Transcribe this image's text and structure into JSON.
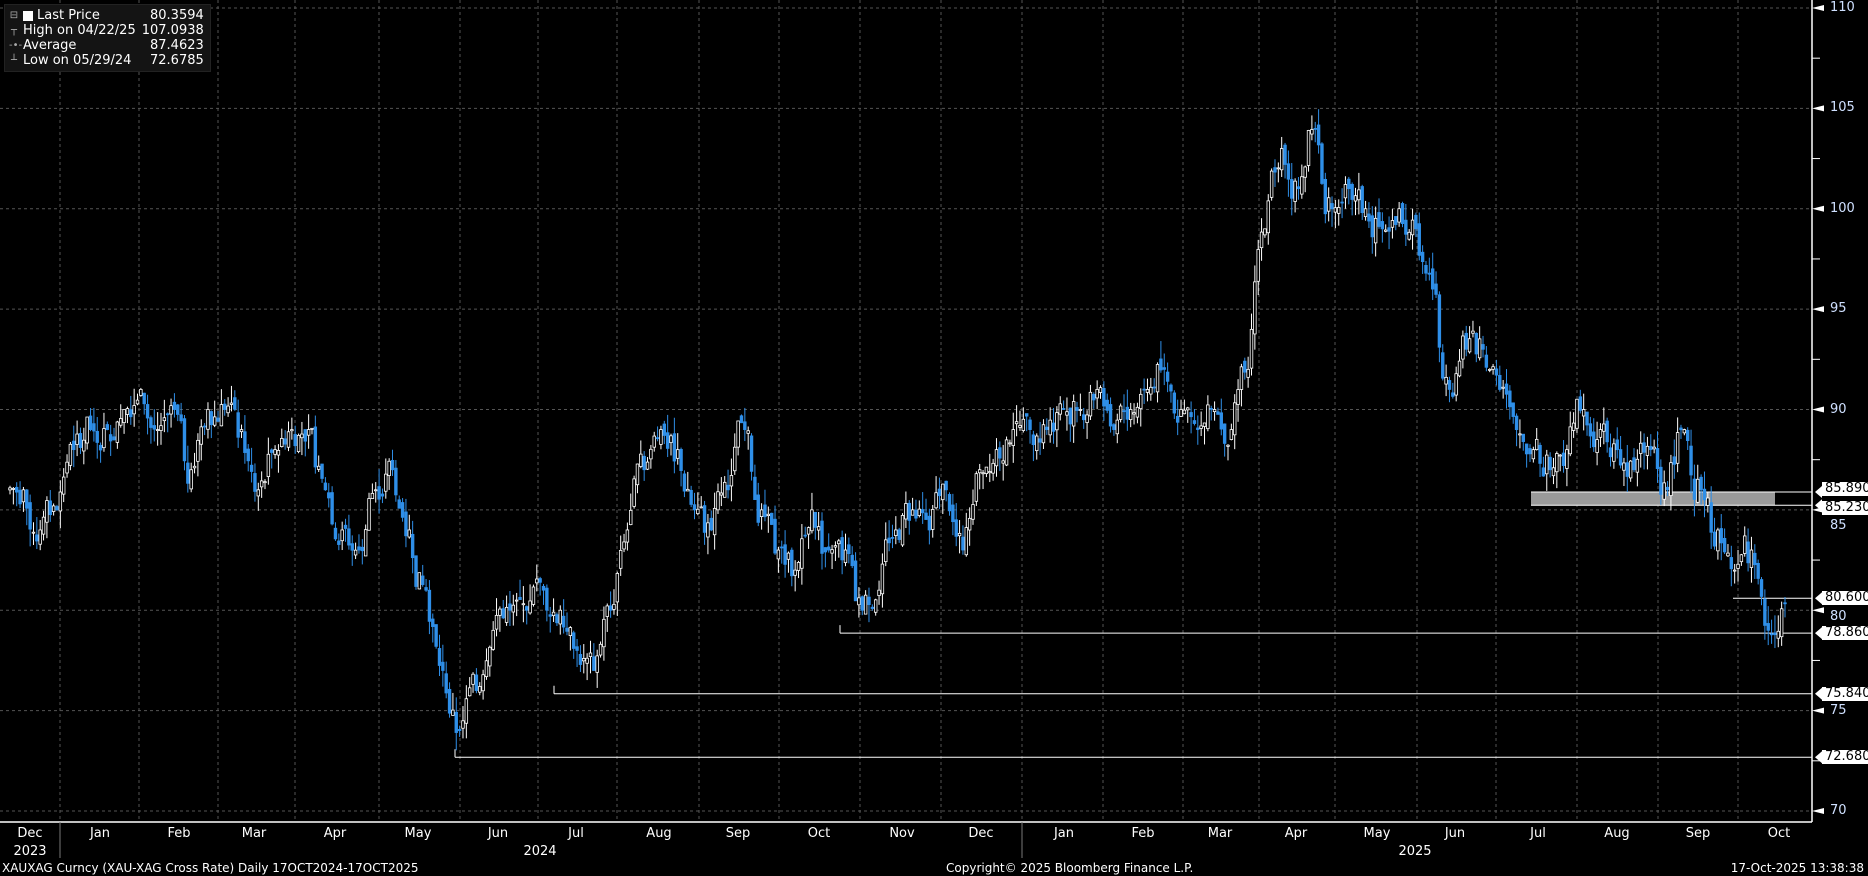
{
  "legend": {
    "last_label": "Last Price",
    "last_value": "80.3594",
    "high_label": "High on 04/22/25",
    "high_value": "107.0938",
    "avg_label": "Average",
    "avg_value": "87.4623",
    "low_label": "Low on 05/29/24",
    "low_value": "72.6785"
  },
  "footer": {
    "left": "XAUXAG Curncy (XAU-XAG Cross Rate) Daily 17OCT2024-17OCT2025",
    "center": "Copyright© 2025 Bloomberg Finance L.P.",
    "right": "17-Oct-2025 13:38:38"
  },
  "colors": {
    "up": "#ffffff",
    "down": "#2f8fe8",
    "grid": "#555555",
    "axis": "#ffffff"
  },
  "chart_data": {
    "type": "candlestick",
    "ylim": [
      70,
      110
    ],
    "yticks": [
      70,
      75,
      80,
      85,
      90,
      95,
      100,
      105,
      110
    ],
    "grid": true,
    "legend_placement": "top-left",
    "months": [
      "Dec",
      "Jan",
      "Feb",
      "Mar",
      "Apr",
      "May",
      "Jun",
      "Jul",
      "Aug",
      "Sep",
      "Oct",
      "Nov",
      "Dec",
      "Jan",
      "Feb",
      "Mar",
      "Apr",
      "May",
      "Jun",
      "Jul",
      "Aug",
      "Sep",
      "Oct"
    ],
    "years": [
      "2023",
      "2024",
      "2025"
    ],
    "weekly_close_approx": [
      86,
      84,
      85,
      88,
      89,
      89,
      90,
      91,
      89,
      90,
      87,
      90,
      90,
      89,
      86,
      88,
      89,
      89,
      86,
      84,
      83,
      86,
      87,
      84,
      81,
      77,
      74,
      76,
      79,
      80,
      80,
      81,
      80,
      78,
      77,
      80,
      84,
      87,
      89,
      88,
      85,
      84,
      86,
      89,
      85,
      83,
      82,
      85,
      83,
      83,
      80,
      81,
      84,
      85,
      84,
      86,
      83,
      87,
      88,
      89,
      89,
      89,
      90,
      90,
      91,
      89,
      90,
      91,
      92,
      90,
      89,
      90,
      89,
      92,
      99,
      103,
      101,
      104,
      100,
      101,
      100,
      99,
      100,
      99,
      96,
      91,
      93,
      93,
      91,
      89,
      88,
      87,
      88,
      90,
      89,
      88,
      87,
      88,
      86,
      89,
      86,
      84,
      82,
      83,
      79,
      80.36
    ],
    "reference_lines": [
      {
        "label": "85.8900",
        "value": 85.89
      },
      {
        "label": "85.2300",
        "value": 85.23
      },
      {
        "label": "80.6000",
        "value": 80.6
      },
      {
        "label": "78.8600",
        "value": 78.86
      },
      {
        "label": "75.8400",
        "value": 75.84
      },
      {
        "label": "72.6800",
        "value": 72.68
      }
    ]
  }
}
